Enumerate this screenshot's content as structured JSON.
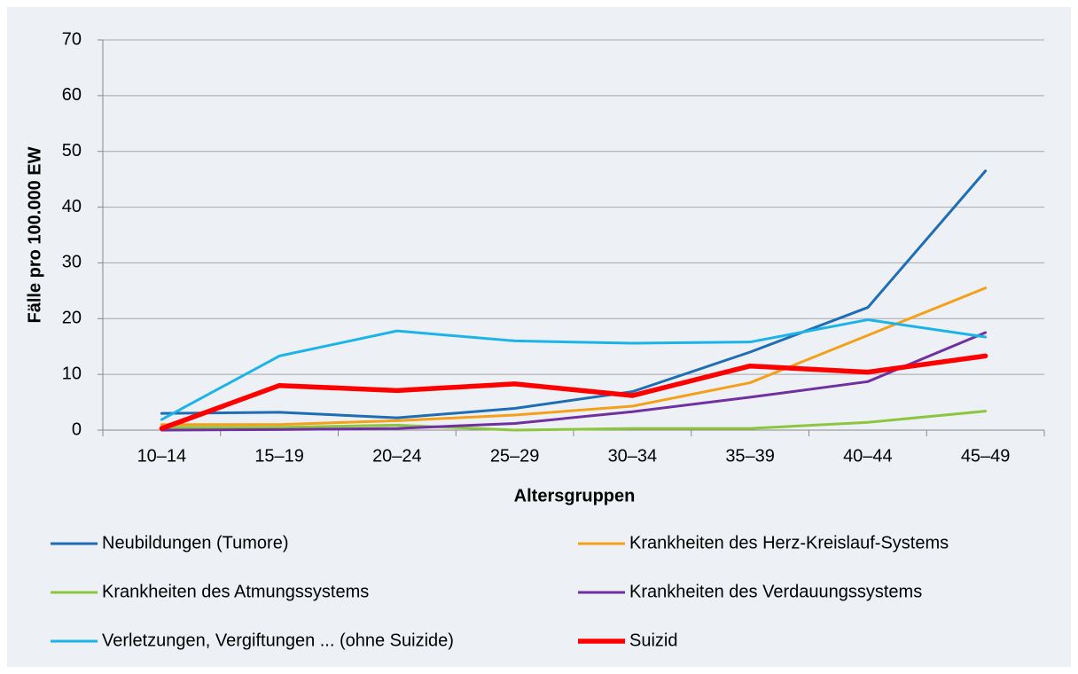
{
  "chart_data": {
    "type": "line",
    "x_label": "Altersgruppen",
    "y_label": "Fälle pro 100.000 EW",
    "categories": [
      "10–14",
      "15–19",
      "20–24",
      "25–29",
      "30–34",
      "35–39",
      "40–44",
      "45–49"
    ],
    "series": [
      {
        "name": "Neubildungen (Tumore)",
        "color": "#1f6db5",
        "line_width": 3,
        "values": [
          3.0,
          3.2,
          2.2,
          3.9,
          6.9,
          14.0,
          22.0,
          46.5
        ]
      },
      {
        "name": "Krankheiten des Herz-Kreislauf-Systems",
        "color": "#f5a01a",
        "line_width": 3,
        "values": [
          1.0,
          1.0,
          1.7,
          2.7,
          4.3,
          8.5,
          17.0,
          25.5
        ]
      },
      {
        "name": "Krankheiten des Atmungssystems",
        "color": "#8cc63f",
        "line_width": 3,
        "values": [
          0.5,
          0.5,
          0.9,
          0.0,
          0.3,
          0.3,
          1.4,
          3.4
        ]
      },
      {
        "name": "Krankheiten des Verdauungssystems",
        "color": "#7030a0",
        "line_width": 3,
        "values": [
          0.0,
          0.1,
          0.3,
          1.2,
          3.3,
          5.9,
          8.7,
          17.5
        ]
      },
      {
        "name": "Verletzungen, Vergiftungen ... (ohne Suizide)",
        "color": "#1cb4e8",
        "line_width": 3,
        "values": [
          1.9,
          13.3,
          17.8,
          16.0,
          15.6,
          15.8,
          19.8,
          16.7
        ]
      },
      {
        "name": "Suizid",
        "color": "#ff0000",
        "line_width": 5.5,
        "values": [
          0.3,
          8.0,
          7.1,
          8.3,
          6.2,
          11.5,
          10.4,
          13.3
        ]
      }
    ],
    "ylim": [
      0,
      70
    ],
    "yticks": [
      0,
      10,
      20,
      30,
      40,
      50,
      60,
      70
    ],
    "grid": true
  }
}
